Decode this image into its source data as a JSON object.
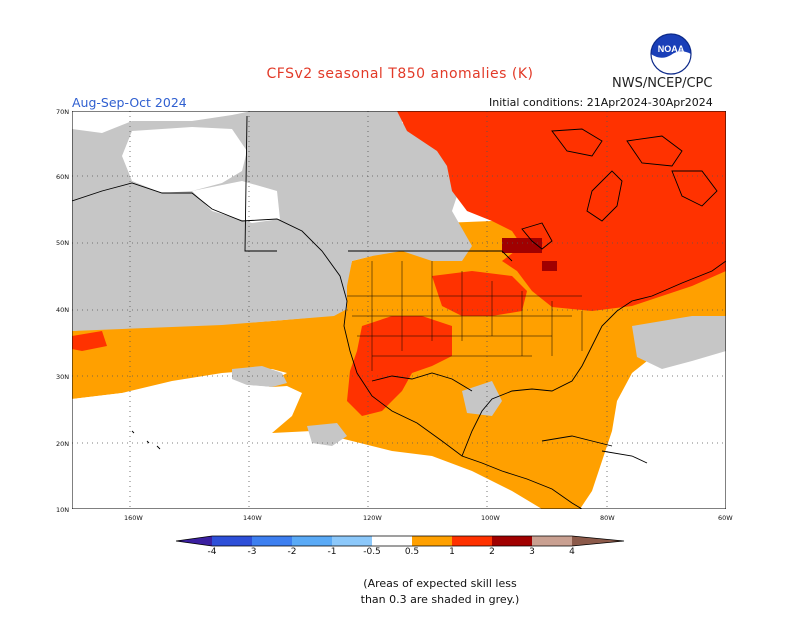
{
  "header": {
    "title": "CFSv2 seasonal T850 anomalies (K)",
    "agency": "NWS/NCEP/CPC",
    "season": "Aug-Sep-Oct 2024",
    "initial_conditions": "Initial conditions: 21Apr2024-30Apr2024",
    "logo_text": "NOAA"
  },
  "map": {
    "lat_labels": [
      "70N",
      "60N",
      "50N",
      "40N",
      "30N",
      "20N",
      "10N"
    ],
    "lon_labels": [
      "160W",
      "140W",
      "120W",
      "100W",
      "80W",
      "60W"
    ],
    "colors": {
      "grey_low_skill": "#c6c6c6",
      "anom_0_5_to_1": "#ffa000",
      "anom_1_to_2": "#ff3200",
      "anom_2_to_3": "#a00000",
      "neutral": "#ffffff",
      "coast": "#000000"
    }
  },
  "colorbar": {
    "labels": [
      "-4",
      "-3",
      "-2",
      "-1",
      "-0.5",
      "0.5",
      "1",
      "2",
      "3",
      "4"
    ],
    "colors": [
      "#3a1fa0",
      "#2d4fd8",
      "#3d7ff0",
      "#5aaaf6",
      "#8cc8fa",
      "#ffffff",
      "#ffa000",
      "#ff3200",
      "#a00000",
      "#c9a091",
      "#8c5a4a"
    ]
  },
  "note": {
    "line1": "(Areas of expected skill less",
    "line2": "than 0.3 are shaded in grey.)"
  }
}
